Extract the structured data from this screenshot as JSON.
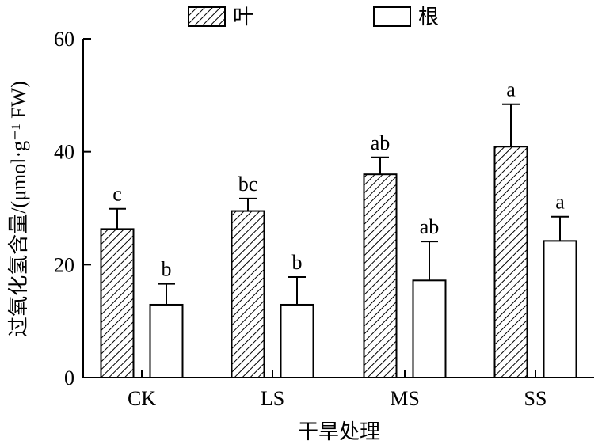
{
  "chart_data": {
    "type": "bar",
    "title": "",
    "xlabel": "干旱处理",
    "ylabel": "过氧化氢含量/(μmol·g⁻¹ FW)",
    "categories": [
      "CK",
      "LS",
      "MS",
      "SS"
    ],
    "ylim": [
      0,
      60
    ],
    "yticks": [
      "0",
      "20",
      "40",
      "60"
    ],
    "legend_position": "top-center",
    "grid": false,
    "series": [
      {
        "name": "叶",
        "pattern": "hatched",
        "values": [
          26.3,
          29.5,
          36.0,
          40.9
        ],
        "errors": [
          3.6,
          2.2,
          3.0,
          7.5
        ],
        "letters": [
          "c",
          "bc",
          "ab",
          "a"
        ]
      },
      {
        "name": "根",
        "pattern": "open",
        "values": [
          12.9,
          12.9,
          17.2,
          24.2
        ],
        "errors": [
          3.7,
          4.9,
          6.9,
          4.3
        ],
        "letters": [
          "b",
          "b",
          "ab",
          "a"
        ]
      }
    ],
    "colors": {
      "stroke": "#000000",
      "fill_open": "#ffffff"
    }
  }
}
